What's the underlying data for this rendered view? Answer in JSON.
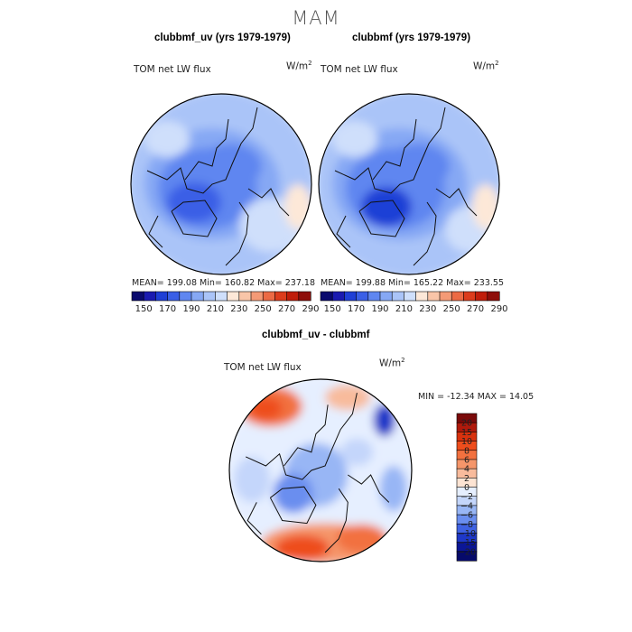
{
  "season": "MAM",
  "panels": [
    {
      "title": "clubbmf_uv (yrs 1979-1979)",
      "variable": "TOM net LW flux",
      "units_base": "W/m",
      "units_exp": "2",
      "stats": "MEAN= 199.08   Min= 160.82   Max= 237.18"
    },
    {
      "title": "clubbmf (yrs 1979-1979)",
      "variable": "TOM net LW flux",
      "units_base": "W/m",
      "units_exp": "2",
      "stats": "MEAN= 199.88   Min= 165.22   Max= 233.55"
    }
  ],
  "diff_panel": {
    "title": "clubbmf_uv - clubbmf",
    "variable": "TOM net LW flux",
    "units_base": "W/m",
    "units_exp": "2",
    "stats": "MIN = -12.34 MAX =  14.05"
  },
  "chart_data": [
    {
      "type": "heatmap",
      "title": "clubbmf_uv (yrs 1979-1979)",
      "projection": "polar stereographic (north pole)",
      "variable": "TOM net LW flux",
      "units": "W/m2",
      "mean": 199.08,
      "min": 160.82,
      "max": 237.18,
      "colorbar_levels": [
        140,
        150,
        160,
        170,
        180,
        190,
        200,
        210,
        220,
        230,
        240,
        250,
        260,
        270,
        280,
        290
      ],
      "colorbar_labels": [
        "150",
        "170",
        "190",
        "210",
        "230",
        "250",
        "270",
        "290"
      ],
      "colorbar_colors": [
        "#0a0a6e",
        "#1a1ab0",
        "#1f3fd6",
        "#3a5fe6",
        "#5f86f0",
        "#86a8f4",
        "#aac4f8",
        "#cfdffb",
        "#fde8d8",
        "#f9c5a8",
        "#f49a76",
        "#ec6a44",
        "#dc3c1c",
        "#c01d0a",
        "#8e0e0a"
      ]
    },
    {
      "type": "heatmap",
      "title": "clubbmf (yrs 1979-1979)",
      "projection": "polar stereographic (north pole)",
      "variable": "TOM net LW flux",
      "units": "W/m2",
      "mean": 199.88,
      "min": 165.22,
      "max": 233.55,
      "colorbar_levels": [
        140,
        150,
        160,
        170,
        180,
        190,
        200,
        210,
        220,
        230,
        240,
        250,
        260,
        270,
        280,
        290
      ],
      "colorbar_labels": [
        "150",
        "170",
        "190",
        "210",
        "230",
        "250",
        "270",
        "290"
      ],
      "colorbar_colors": [
        "#0a0a6e",
        "#1a1ab0",
        "#1f3fd6",
        "#3a5fe6",
        "#5f86f0",
        "#86a8f4",
        "#aac4f8",
        "#cfdffb",
        "#fde8d8",
        "#f9c5a8",
        "#f49a76",
        "#ec6a44",
        "#dc3c1c",
        "#c01d0a",
        "#8e0e0a"
      ]
    },
    {
      "type": "heatmap",
      "title": "clubbmf_uv - clubbmf",
      "projection": "polar stereographic (north pole)",
      "variable": "TOM net LW flux",
      "units": "W/m2",
      "min": -12.34,
      "max": 14.05,
      "colorbar_labels": [
        "20",
        "15",
        "10",
        "8",
        "6",
        "4",
        "2",
        "0",
        "−2",
        "−4",
        "−6",
        "−8",
        "−10",
        "−15",
        "−20"
      ],
      "colorbar_colors": [
        "#7a0a0a",
        "#b01a0c",
        "#d8320e",
        "#ee4d1c",
        "#f2713f",
        "#f5966a",
        "#f8bb9c",
        "#fde4d3",
        "#e6efff",
        "#c4d6fb",
        "#98b6f5",
        "#6a8eef",
        "#3f62e3",
        "#1e38c8",
        "#0b1696",
        "#060a6a"
      ]
    }
  ]
}
